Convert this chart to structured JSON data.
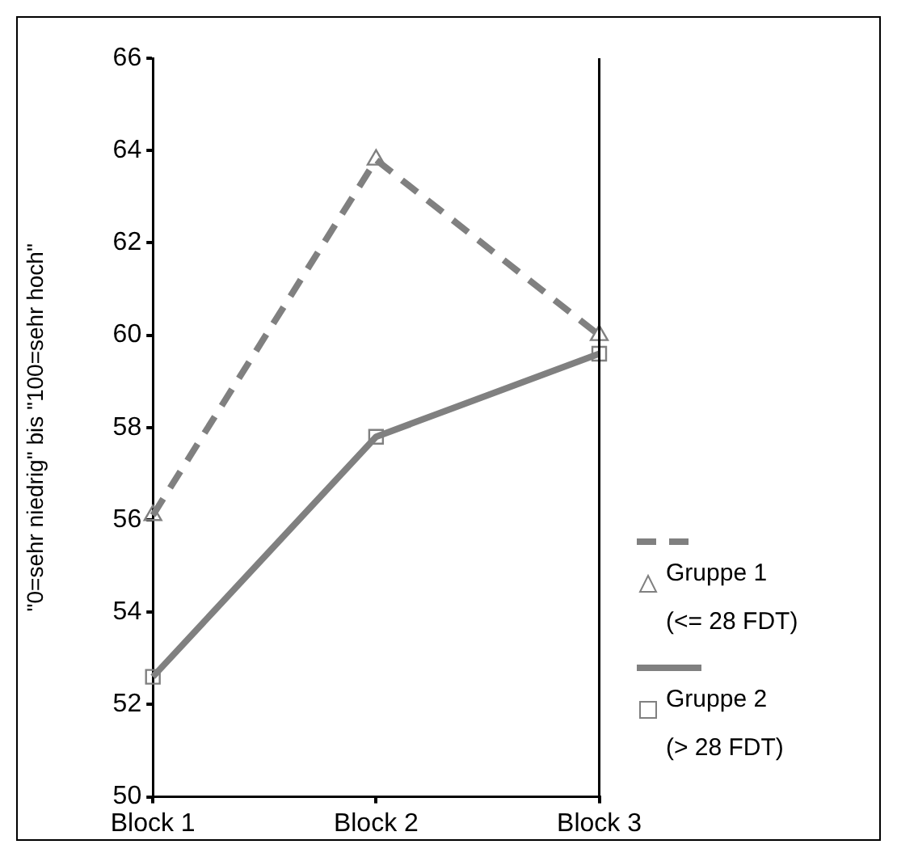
{
  "chart_data": {
    "type": "line",
    "ylabel": "\"0=sehr niedrig\" bis \"100=sehr hoch\"",
    "categories": [
      "Block 1",
      "Block 2",
      "Block 3"
    ],
    "ylim": [
      50,
      66
    ],
    "yticks": [
      50,
      52,
      54,
      56,
      58,
      60,
      62,
      64,
      66
    ],
    "grid": false,
    "legend": "right",
    "series": [
      {
        "name": "Gruppe 1\n(<= 28 FDT)",
        "color": "#808080",
        "values": [
          56.1,
          63.8,
          60.0
        ],
        "line_style": "dashed",
        "marker": "triangle"
      },
      {
        "name": "Gruppe 2\n(> 28 FDT)",
        "color": "#808080",
        "values": [
          52.6,
          57.8,
          59.6
        ],
        "line_style": "solid",
        "marker": "square"
      }
    ]
  }
}
